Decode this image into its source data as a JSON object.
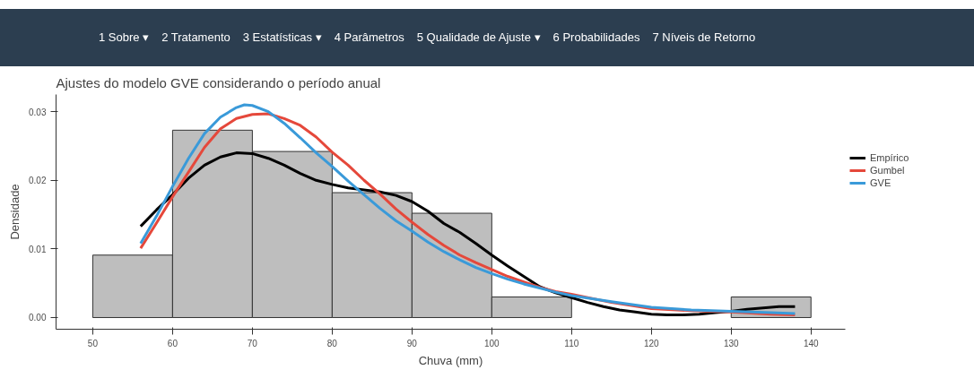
{
  "chart_data": {
    "type": "histogram",
    "title": "Ajustes do modelo GVE considerando o período anual",
    "xlabel": "Chuva (mm)",
    "ylabel": "Densidade",
    "annotations": [
      "1 Sobre ▾",
      "2 Tratamento",
      "3 Estatísticas ▾",
      "4 Parâmetros",
      "5 Qualidade de Ajuste ▾",
      "6 Probabilidades",
      "7 Níveis de Retorno"
    ],
    "bins": [
      50,
      60,
      70,
      80,
      90,
      100,
      110,
      120,
      130,
      140
    ],
    "values": [
      0.0091,
      0.0273,
      0.0242,
      0.0182,
      0.0152,
      0.003,
      0,
      0,
      0.003
    ],
    "color": "#bebebe",
    "series": [
      {
        "name": "Empírico",
        "type": "line",
        "color": "#000000",
        "x": [
          56,
          58,
          60,
          62,
          64,
          66,
          68,
          70,
          72,
          74,
          76,
          78,
          80,
          82,
          84,
          86,
          88,
          90,
          92,
          94,
          96,
          98,
          100,
          102,
          104,
          106,
          108,
          110,
          112,
          114,
          116,
          118,
          120,
          122,
          124,
          126,
          128,
          130,
          132,
          134,
          136,
          138
        ],
        "values": [
          0.0133,
          0.0157,
          0.0179,
          0.0203,
          0.0222,
          0.0234,
          0.024,
          0.0239,
          0.0232,
          0.0222,
          0.021,
          0.02,
          0.0194,
          0.0189,
          0.0186,
          0.0183,
          0.0178,
          0.0169,
          0.0155,
          0.0137,
          0.0124,
          0.0108,
          0.0091,
          0.0075,
          0.006,
          0.0045,
          0.0036,
          0.0029,
          0.0022,
          0.0016,
          0.0011,
          0.0008,
          0.0005,
          0.0004,
          0.0004,
          0.0005,
          0.0007,
          0.0009,
          0.0012,
          0.0014,
          0.0016,
          0.0016
        ]
      },
      {
        "name": "Gumbel",
        "type": "line",
        "color": "#e5483b",
        "x": [
          56,
          58,
          60,
          62,
          64,
          66,
          68,
          70,
          72,
          74,
          76,
          78,
          80,
          82,
          84,
          86,
          88,
          90,
          92,
          94,
          96,
          98,
          100,
          102,
          104,
          106,
          108,
          110,
          115,
          120,
          125,
          130,
          135,
          138
        ],
        "values": [
          0.0101,
          0.0138,
          0.0176,
          0.0212,
          0.0248,
          0.0275,
          0.029,
          0.0296,
          0.0297,
          0.029,
          0.028,
          0.0263,
          0.0241,
          0.0222,
          0.02,
          0.018,
          0.0158,
          0.0139,
          0.0121,
          0.0105,
          0.0091,
          0.008,
          0.007,
          0.006,
          0.0052,
          0.0044,
          0.0038,
          0.0034,
          0.0022,
          0.0013,
          0.001,
          0.0008,
          0.0005,
          0.0004
        ]
      },
      {
        "name": "GVE",
        "type": "line",
        "color": "#3a9ad9",
        "x": [
          56,
          58,
          60,
          62,
          64,
          66,
          68,
          69,
          70,
          72,
          74,
          76,
          78,
          80,
          82,
          84,
          86,
          88,
          90,
          92,
          94,
          96,
          98,
          100,
          102,
          104,
          106,
          108,
          110,
          115,
          120,
          125,
          130,
          135,
          138
        ],
        "values": [
          0.0108,
          0.0148,
          0.0191,
          0.0232,
          0.0268,
          0.0292,
          0.0306,
          0.031,
          0.0309,
          0.03,
          0.0283,
          0.0262,
          0.024,
          0.022,
          0.0199,
          0.0179,
          0.0159,
          0.0141,
          0.0126,
          0.011,
          0.0096,
          0.0084,
          0.0073,
          0.0064,
          0.0056,
          0.0049,
          0.0043,
          0.0037,
          0.0032,
          0.0023,
          0.0015,
          0.0011,
          0.0009,
          0.0007,
          0.0006
        ]
      }
    ],
    "xlim": [
      45.4,
      144.3
    ],
    "ylim": [
      -0.0017,
      0.0325
    ],
    "xticks": [
      50,
      60,
      70,
      80,
      90,
      100,
      110,
      120,
      130,
      140
    ],
    "yticks": [
      {
        "value": 0,
        "label": "0.00"
      },
      {
        "value": 0.01,
        "label": "0.01"
      },
      {
        "value": 0.02,
        "label": "0.02"
      },
      {
        "value": 0.03,
        "label": "0.03"
      }
    ],
    "grid": false,
    "legend": "right"
  }
}
